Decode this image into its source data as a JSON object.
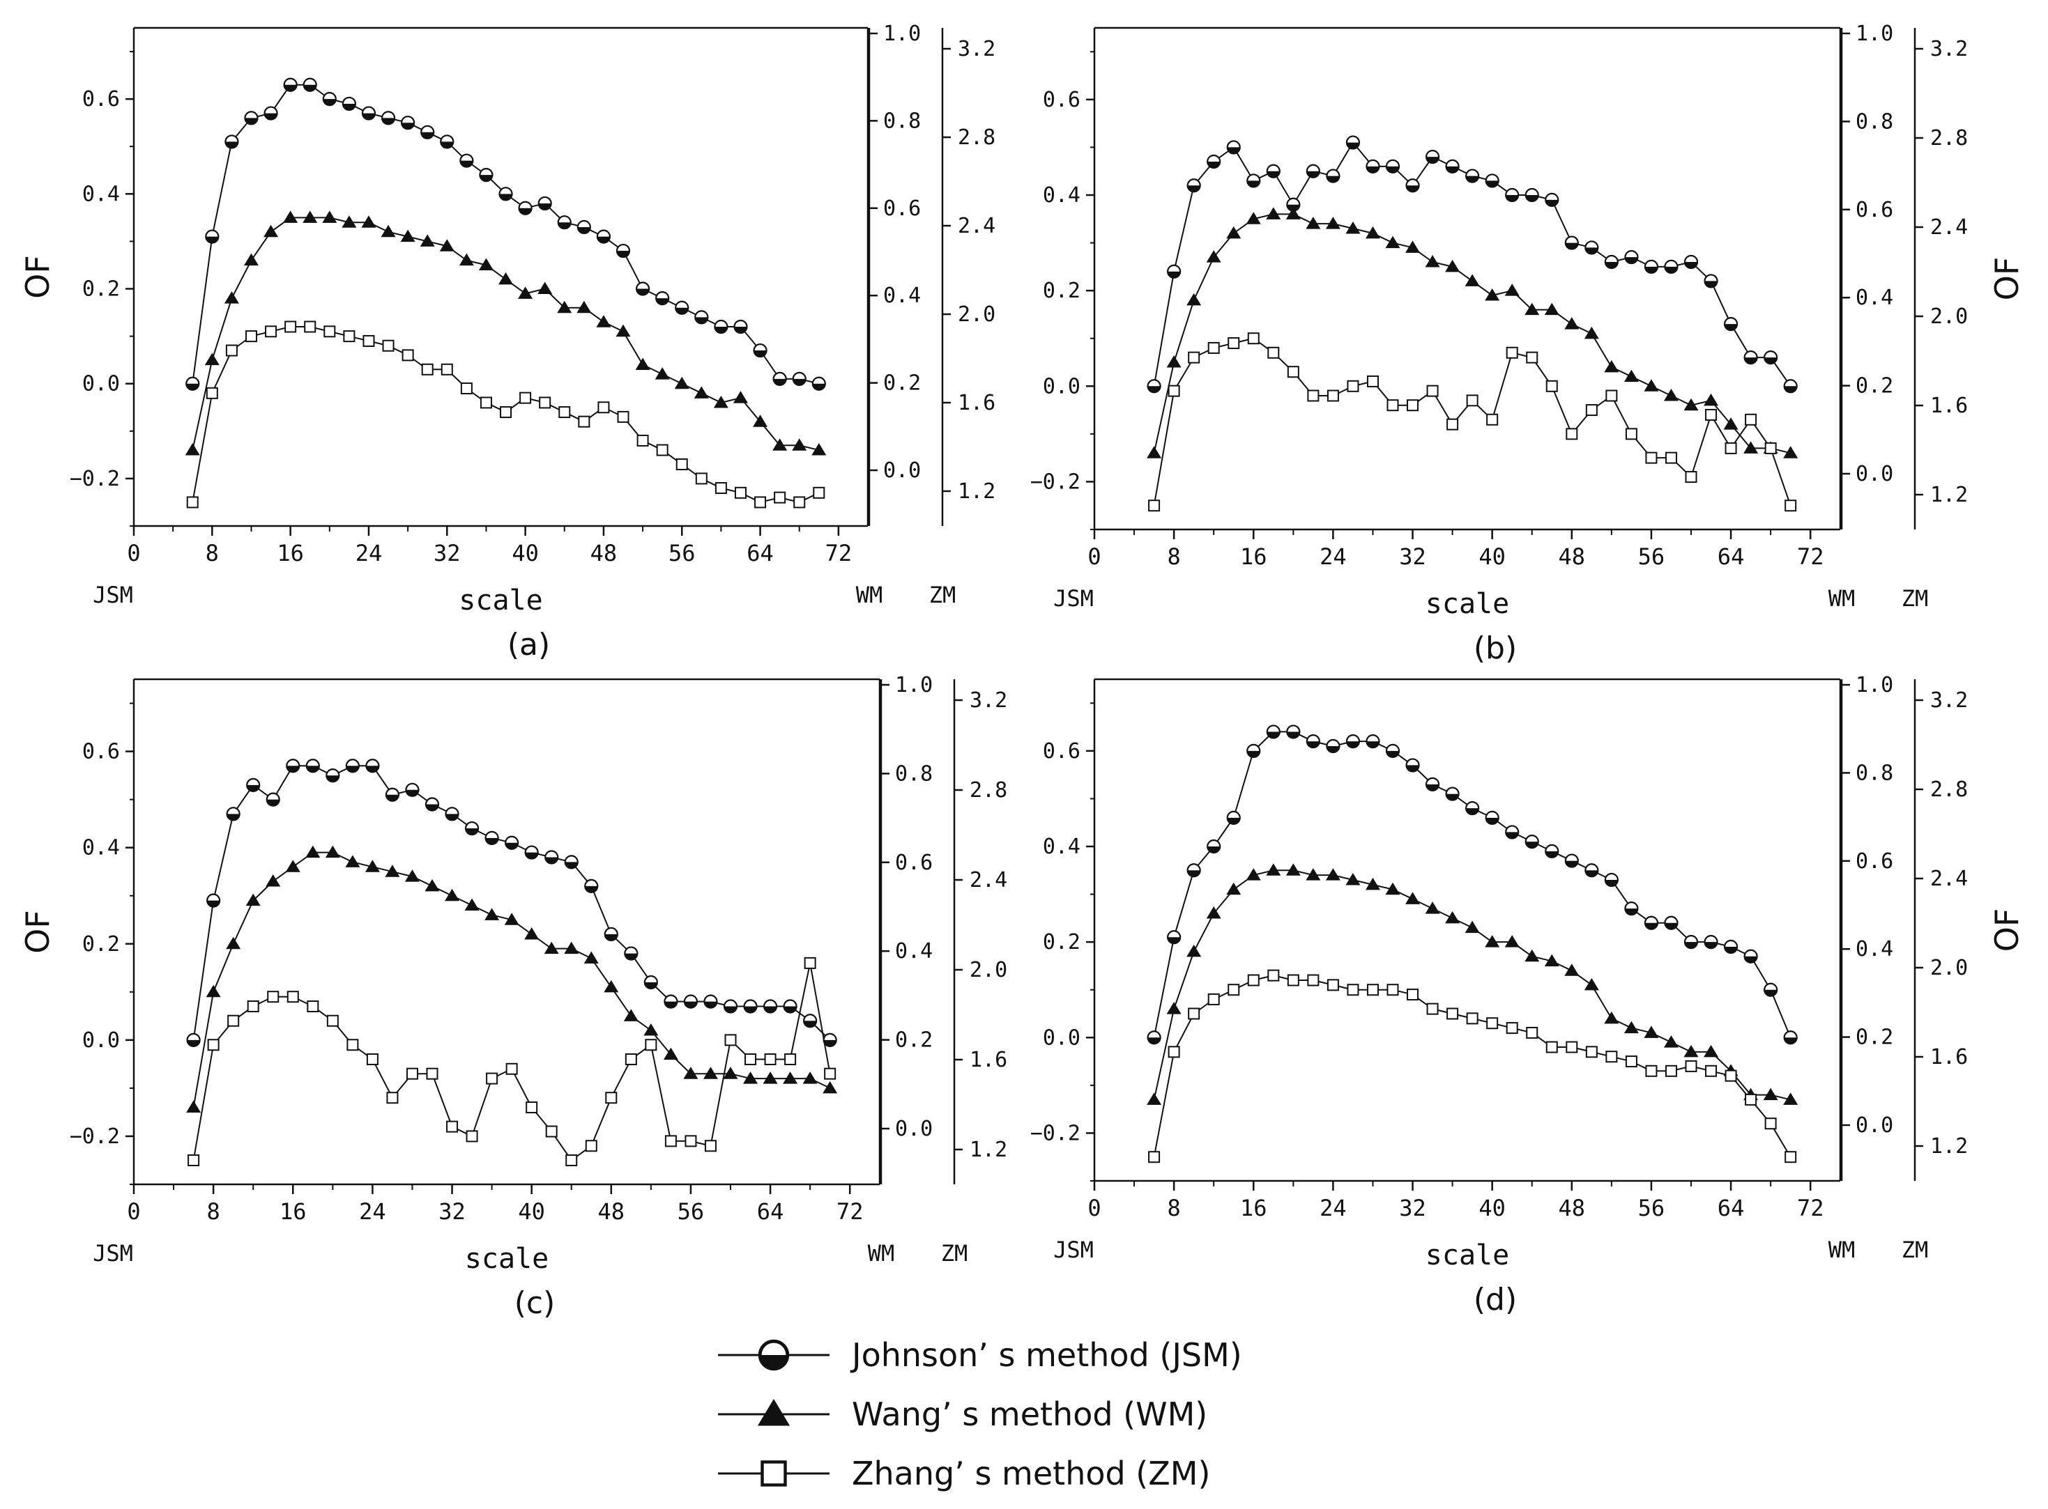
{
  "colors": {
    "ink": "#111111",
    "open_marker_fill": "#ffffff",
    "frame": "#222222"
  },
  "chart_data": [
    {
      "type": "line",
      "title": "",
      "panel_label": "(a)",
      "xlabel": "scale",
      "ylabel": "OF",
      "ylabel_right": "",
      "x_end_labels": {
        "left": "JSM",
        "right_1": "WM",
        "right_2": "ZM"
      },
      "xlim": [
        0,
        75
      ],
      "xticks": [
        0,
        8,
        16,
        24,
        32,
        40,
        48,
        56,
        64,
        72
      ],
      "ylim": [
        -0.3,
        0.75
      ],
      "yticks": [
        -0.2,
        0.0,
        0.2,
        0.4,
        0.6
      ],
      "y2_ticks": [
        0.0,
        0.2,
        0.4,
        0.6,
        0.8,
        1.0
      ],
      "y3_ticks": [
        1.2,
        1.6,
        2.0,
        2.4,
        2.8,
        3.2
      ],
      "x": [
        6,
        8,
        10,
        12,
        14,
        16,
        18,
        20,
        22,
        24,
        26,
        28,
        30,
        32,
        34,
        36,
        38,
        40,
        42,
        44,
        46,
        48,
        50,
        52,
        54,
        56,
        58,
        60,
        62,
        64,
        66,
        68,
        70
      ],
      "series": [
        {
          "name": "JSM",
          "marker": "half-circle",
          "values": [
            0.0,
            0.31,
            0.51,
            0.56,
            0.57,
            0.63,
            0.63,
            0.6,
            0.59,
            0.57,
            0.56,
            0.55,
            0.53,
            0.51,
            0.47,
            0.44,
            0.4,
            0.37,
            0.38,
            0.34,
            0.33,
            0.31,
            0.28,
            0.2,
            0.18,
            0.16,
            0.14,
            0.12,
            0.12,
            0.07,
            0.01,
            0.01,
            0.0
          ]
        },
        {
          "name": "WM",
          "marker": "filled-triangle",
          "values": [
            -0.14,
            0.05,
            0.18,
            0.26,
            0.32,
            0.35,
            0.35,
            0.35,
            0.34,
            0.34,
            0.32,
            0.31,
            0.3,
            0.29,
            0.26,
            0.25,
            0.22,
            0.19,
            0.2,
            0.16,
            0.16,
            0.13,
            0.11,
            0.04,
            0.02,
            0.0,
            -0.02,
            -0.04,
            -0.03,
            -0.08,
            -0.13,
            -0.13,
            -0.14
          ]
        },
        {
          "name": "ZM",
          "marker": "open-square",
          "values": [
            -0.25,
            -0.02,
            0.07,
            0.1,
            0.11,
            0.12,
            0.12,
            0.11,
            0.1,
            0.09,
            0.08,
            0.06,
            0.03,
            0.03,
            -0.01,
            -0.04,
            -0.06,
            -0.03,
            -0.04,
            -0.06,
            -0.08,
            -0.05,
            -0.07,
            -0.12,
            -0.14,
            -0.17,
            -0.2,
            -0.22,
            -0.23,
            -0.25,
            -0.24,
            -0.25,
            -0.23
          ]
        }
      ]
    },
    {
      "type": "line",
      "title": "",
      "panel_label": "(b)",
      "xlabel": "scale",
      "ylabel": "",
      "ylabel_right": "OF",
      "x_end_labels": {
        "left": "JSM",
        "right_1": "WM",
        "right_2": "ZM"
      },
      "xlim": [
        0,
        75
      ],
      "xticks": [
        0,
        8,
        16,
        24,
        32,
        40,
        48,
        56,
        64,
        72
      ],
      "ylim": [
        -0.3,
        0.75
      ],
      "yticks": [
        -0.2,
        0.0,
        0.2,
        0.4,
        0.6
      ],
      "y2_ticks": [
        0.0,
        0.2,
        0.4,
        0.6,
        0.8,
        1.0
      ],
      "y3_ticks": [
        1.2,
        1.6,
        2.0,
        2.4,
        2.8,
        3.2
      ],
      "x": [
        6,
        8,
        10,
        12,
        14,
        16,
        18,
        20,
        22,
        24,
        26,
        28,
        30,
        32,
        34,
        36,
        38,
        40,
        42,
        44,
        46,
        48,
        50,
        52,
        54,
        56,
        58,
        60,
        62,
        64,
        66,
        68,
        70
      ],
      "series": [
        {
          "name": "JSM",
          "marker": "half-circle",
          "values": [
            0.0,
            0.24,
            0.42,
            0.47,
            0.5,
            0.43,
            0.45,
            0.38,
            0.45,
            0.44,
            0.51,
            0.46,
            0.46,
            0.42,
            0.48,
            0.46,
            0.44,
            0.43,
            0.4,
            0.4,
            0.39,
            0.3,
            0.29,
            0.26,
            0.27,
            0.25,
            0.25,
            0.26,
            0.22,
            0.13,
            0.06,
            0.06,
            0.0
          ]
        },
        {
          "name": "WM",
          "marker": "filled-triangle",
          "values": [
            -0.14,
            0.05,
            0.18,
            0.27,
            0.32,
            0.35,
            0.36,
            0.36,
            0.34,
            0.34,
            0.33,
            0.32,
            0.3,
            0.29,
            0.26,
            0.25,
            0.22,
            0.19,
            0.2,
            0.16,
            0.16,
            0.13,
            0.11,
            0.04,
            0.02,
            0.0,
            -0.02,
            -0.04,
            -0.03,
            -0.08,
            -0.13,
            -0.13,
            -0.14
          ]
        },
        {
          "name": "ZM",
          "marker": "open-square",
          "values": [
            -0.25,
            -0.01,
            0.06,
            0.08,
            0.09,
            0.1,
            0.07,
            0.03,
            -0.02,
            -0.02,
            0.0,
            0.01,
            -0.04,
            -0.04,
            -0.01,
            -0.08,
            -0.03,
            -0.07,
            0.07,
            0.06,
            0.0,
            -0.1,
            -0.05,
            -0.02,
            -0.1,
            -0.15,
            -0.15,
            -0.19,
            -0.06,
            -0.13,
            -0.07,
            -0.13,
            -0.25
          ]
        }
      ]
    },
    {
      "type": "line",
      "title": "",
      "panel_label": "(c)",
      "xlabel": "scale",
      "ylabel": "OF",
      "ylabel_right": "",
      "x_end_labels": {
        "left": "JSM",
        "right_1": "WM",
        "right_2": "ZM"
      },
      "xlim": [
        0,
        75
      ],
      "xticks": [
        0,
        8,
        16,
        24,
        32,
        40,
        48,
        56,
        64,
        72
      ],
      "ylim": [
        -0.3,
        0.75
      ],
      "yticks": [
        -0.2,
        0.0,
        0.2,
        0.4,
        0.6
      ],
      "y2_ticks": [
        0.0,
        0.2,
        0.4,
        0.6,
        0.8,
        1.0
      ],
      "y3_ticks": [
        1.2,
        1.6,
        2.0,
        2.4,
        2.8,
        3.2
      ],
      "x": [
        6,
        8,
        10,
        12,
        14,
        16,
        18,
        20,
        22,
        24,
        26,
        28,
        30,
        32,
        34,
        36,
        38,
        40,
        42,
        44,
        46,
        48,
        50,
        52,
        54,
        56,
        58,
        60,
        62,
        64,
        66,
        68,
        70
      ],
      "series": [
        {
          "name": "JSM",
          "marker": "half-circle",
          "values": [
            0.0,
            0.29,
            0.47,
            0.53,
            0.5,
            0.57,
            0.57,
            0.55,
            0.57,
            0.57,
            0.51,
            0.52,
            0.49,
            0.47,
            0.44,
            0.42,
            0.41,
            0.39,
            0.38,
            0.37,
            0.32,
            0.22,
            0.18,
            0.12,
            0.08,
            0.08,
            0.08,
            0.07,
            0.07,
            0.07,
            0.07,
            0.04,
            0.0
          ]
        },
        {
          "name": "WM",
          "marker": "filled-triangle",
          "values": [
            -0.14,
            0.1,
            0.2,
            0.29,
            0.33,
            0.36,
            0.39,
            0.39,
            0.37,
            0.36,
            0.35,
            0.34,
            0.32,
            0.3,
            0.28,
            0.26,
            0.25,
            0.22,
            0.19,
            0.19,
            0.17,
            0.11,
            0.05,
            0.02,
            -0.03,
            -0.07,
            -0.07,
            -0.07,
            -0.08,
            -0.08,
            -0.08,
            -0.08,
            -0.1
          ]
        },
        {
          "name": "ZM",
          "marker": "open-square",
          "values": [
            -0.25,
            -0.01,
            0.04,
            0.07,
            0.09,
            0.09,
            0.07,
            0.04,
            -0.01,
            -0.04,
            -0.12,
            -0.07,
            -0.07,
            -0.18,
            -0.2,
            -0.08,
            -0.06,
            -0.14,
            -0.19,
            -0.25,
            -0.22,
            -0.12,
            -0.04,
            -0.01,
            -0.21,
            -0.21,
            -0.22,
            0.0,
            -0.04,
            -0.04,
            -0.04,
            0.16,
            -0.07
          ]
        }
      ]
    },
    {
      "type": "line",
      "title": "",
      "panel_label": "(d)",
      "xlabel": "scale",
      "ylabel": "",
      "ylabel_right": "OF",
      "x_end_labels": {
        "left": "JSM",
        "right_1": "WM",
        "right_2": "ZM"
      },
      "xlim": [
        0,
        75
      ],
      "xticks": [
        0,
        8,
        16,
        24,
        32,
        40,
        48,
        56,
        64,
        72
      ],
      "ylim": [
        -0.3,
        0.75
      ],
      "yticks": [
        -0.2,
        0.0,
        0.2,
        0.4,
        0.6
      ],
      "y2_ticks": [
        0.0,
        0.2,
        0.4,
        0.6,
        0.8,
        1.0
      ],
      "y3_ticks": [
        1.2,
        1.6,
        2.0,
        2.4,
        2.8,
        3.2
      ],
      "x": [
        6,
        8,
        10,
        12,
        14,
        16,
        18,
        20,
        22,
        24,
        26,
        28,
        30,
        32,
        34,
        36,
        38,
        40,
        42,
        44,
        46,
        48,
        50,
        52,
        54,
        56,
        58,
        60,
        62,
        64,
        66,
        68,
        70
      ],
      "series": [
        {
          "name": "JSM",
          "marker": "half-circle",
          "values": [
            0.0,
            0.21,
            0.35,
            0.4,
            0.46,
            0.6,
            0.64,
            0.64,
            0.62,
            0.61,
            0.62,
            0.62,
            0.6,
            0.57,
            0.53,
            0.51,
            0.48,
            0.46,
            0.43,
            0.41,
            0.39,
            0.37,
            0.35,
            0.33,
            0.27,
            0.24,
            0.24,
            0.2,
            0.2,
            0.19,
            0.17,
            0.1,
            0.0
          ]
        },
        {
          "name": "WM",
          "marker": "filled-triangle",
          "values": [
            -0.13,
            0.06,
            0.18,
            0.26,
            0.31,
            0.34,
            0.35,
            0.35,
            0.34,
            0.34,
            0.33,
            0.32,
            0.31,
            0.29,
            0.27,
            0.25,
            0.23,
            0.2,
            0.2,
            0.17,
            0.16,
            0.14,
            0.11,
            0.04,
            0.02,
            0.01,
            -0.01,
            -0.03,
            -0.03,
            -0.07,
            -0.12,
            -0.12,
            -0.13
          ]
        },
        {
          "name": "ZM",
          "marker": "open-square",
          "values": [
            -0.25,
            -0.03,
            0.05,
            0.08,
            0.1,
            0.12,
            0.13,
            0.12,
            0.12,
            0.11,
            0.1,
            0.1,
            0.1,
            0.09,
            0.06,
            0.05,
            0.04,
            0.03,
            0.02,
            0.01,
            -0.02,
            -0.02,
            -0.03,
            -0.04,
            -0.05,
            -0.07,
            -0.07,
            -0.06,
            -0.07,
            -0.08,
            -0.13,
            -0.18,
            -0.25
          ]
        }
      ]
    }
  ],
  "legend": {
    "items": [
      {
        "marker": "half-circle",
        "label": "Johnson’ s method (JSM)"
      },
      {
        "marker": "filled-triangle",
        "label": "Wang’ s method (WM)"
      },
      {
        "marker": "open-square",
        "label": "Zhang’ s method (ZM)"
      }
    ]
  }
}
